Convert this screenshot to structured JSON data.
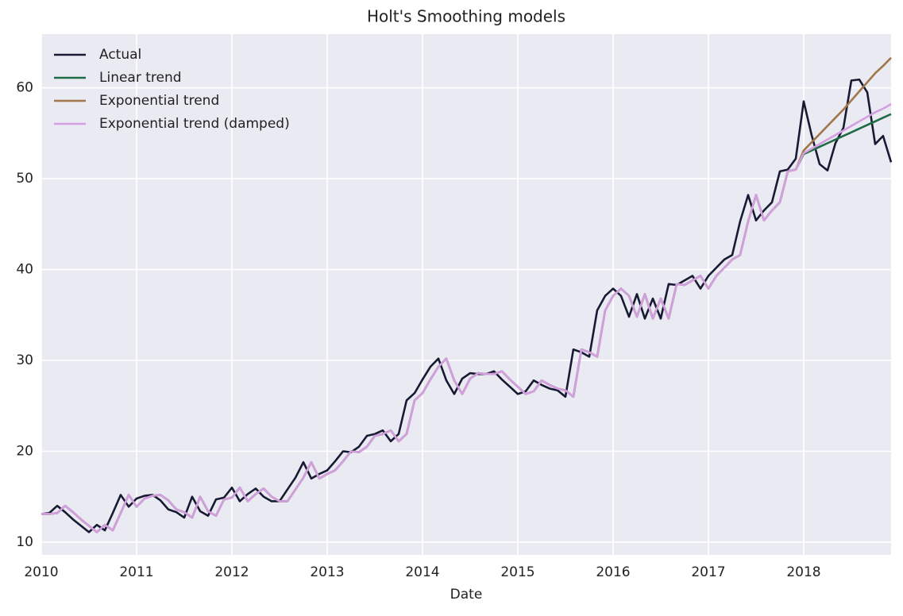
{
  "chart_data": {
    "type": "line",
    "title": "Holt's Smoothing models",
    "x_label": "Date",
    "x": [
      2010,
      2010.083,
      2010.167,
      2010.25,
      2010.333,
      2010.417,
      2010.5,
      2010.583,
      2010.667,
      2010.75,
      2010.833,
      2010.917,
      2011,
      2011.083,
      2011.167,
      2011.25,
      2011.333,
      2011.417,
      2011.5,
      2011.583,
      2011.667,
      2011.75,
      2011.833,
      2011.917,
      2012,
      2012.083,
      2012.167,
      2012.25,
      2012.333,
      2012.417,
      2012.5,
      2012.583,
      2012.667,
      2012.75,
      2012.833,
      2012.917,
      2013,
      2013.083,
      2013.167,
      2013.25,
      2013.333,
      2013.417,
      2013.5,
      2013.583,
      2013.667,
      2013.75,
      2013.833,
      2013.917,
      2014,
      2014.083,
      2014.167,
      2014.25,
      2014.333,
      2014.417,
      2014.5,
      2014.583,
      2014.667,
      2014.75,
      2014.833,
      2014.917,
      2015,
      2015.083,
      2015.167,
      2015.25,
      2015.333,
      2015.417,
      2015.5,
      2015.583,
      2015.667,
      2015.75,
      2015.833,
      2015.917,
      2016,
      2016.083,
      2016.167,
      2016.25,
      2016.333,
      2016.417,
      2016.5,
      2016.583,
      2016.667,
      2016.75,
      2016.833,
      2016.917,
      2017,
      2017.083,
      2017.167,
      2017.25,
      2017.333,
      2017.417,
      2017.5,
      2017.583,
      2017.667,
      2017.75,
      2017.833,
      2017.917,
      2018,
      2018.083,
      2018.167,
      2018.25,
      2018.333,
      2018.417,
      2018.5,
      2018.583,
      2018.667,
      2018.75,
      2018.833,
      2018.917
    ],
    "series": [
      {
        "name": "Actual",
        "color": "#171a33",
        "values": [
          13.1,
          13.2,
          14.0,
          13.3,
          12.5,
          11.8,
          11.1,
          11.9,
          11.3,
          13.2,
          15.2,
          13.9,
          14.8,
          15.1,
          15.2,
          14.6,
          13.6,
          13.3,
          12.7,
          15.0,
          13.4,
          12.9,
          14.7,
          14.9,
          16.0,
          14.5,
          15.3,
          15.9,
          15.0,
          14.5,
          14.5,
          15.8,
          17.1,
          18.8,
          17.0,
          17.5,
          17.9,
          18.9,
          20.0,
          19.9,
          20.5,
          21.7,
          21.9,
          22.3,
          21.1,
          21.9,
          25.6,
          26.4,
          27.9,
          29.3,
          30.2,
          27.8,
          26.3,
          28.0,
          28.6,
          28.5,
          28.5,
          28.8,
          27.9,
          27.1,
          26.3,
          26.6,
          27.8,
          27.3,
          26.9,
          26.7,
          26.0,
          31.2,
          30.9,
          30.4,
          35.5,
          37.1,
          37.9,
          37.1,
          34.8,
          37.3,
          34.6,
          36.8,
          34.6,
          38.4,
          38.3,
          38.8,
          39.3,
          37.9,
          39.3,
          40.2,
          41.1,
          41.6,
          45.3,
          48.2,
          45.4,
          46.5,
          47.4,
          50.8,
          51.0,
          52.2,
          58.5,
          54.8,
          51.6,
          50.9,
          53.9,
          55.6,
          60.8,
          60.9,
          59.5,
          53.8,
          54.7,
          51.8
        ]
      },
      {
        "name": "Linear trend",
        "color": "#1e6b45",
        "values": [
          13.1,
          13.1,
          13.2,
          14.0,
          13.3,
          12.5,
          11.8,
          11.1,
          11.9,
          11.3,
          13.2,
          15.2,
          13.9,
          14.8,
          15.1,
          15.2,
          14.6,
          13.6,
          13.3,
          12.7,
          15.0,
          13.4,
          12.9,
          14.7,
          14.9,
          16.0,
          14.5,
          15.3,
          15.9,
          15.0,
          14.5,
          14.5,
          15.8,
          17.1,
          18.8,
          17.0,
          17.5,
          17.9,
          18.9,
          20.0,
          19.9,
          20.5,
          21.7,
          21.9,
          22.3,
          21.1,
          21.9,
          25.6,
          26.4,
          27.9,
          29.3,
          30.2,
          27.8,
          26.3,
          28.0,
          28.6,
          28.5,
          28.5,
          28.8,
          27.9,
          27.1,
          26.3,
          26.6,
          27.8,
          27.3,
          26.9,
          26.7,
          26.0,
          31.2,
          30.9,
          30.4,
          35.5,
          37.1,
          37.9,
          37.1,
          34.8,
          37.3,
          34.6,
          36.8,
          34.6,
          38.4,
          38.3,
          38.8,
          39.3,
          37.9,
          39.3,
          40.2,
          41.1,
          41.6,
          45.3,
          48.2,
          45.4,
          46.5,
          47.4,
          50.8,
          51.0,
          52.7,
          53.1,
          53.5,
          53.9,
          54.3,
          54.7,
          55.1,
          55.5,
          55.9,
          56.3,
          56.7,
          57.1
        ]
      },
      {
        "name": "Exponential trend",
        "color": "#a0764a",
        "values": [
          13.1,
          13.1,
          13.2,
          14.0,
          13.3,
          12.5,
          11.8,
          11.1,
          11.9,
          11.3,
          13.2,
          15.2,
          13.9,
          14.8,
          15.1,
          15.2,
          14.6,
          13.6,
          13.3,
          12.7,
          15.0,
          13.4,
          12.9,
          14.7,
          14.9,
          16.0,
          14.5,
          15.3,
          15.9,
          15.0,
          14.5,
          14.5,
          15.8,
          17.1,
          18.8,
          17.0,
          17.5,
          17.9,
          18.9,
          20.0,
          19.9,
          20.5,
          21.7,
          21.9,
          22.3,
          21.1,
          21.9,
          25.6,
          26.4,
          27.9,
          29.3,
          30.2,
          27.8,
          26.3,
          28.0,
          28.6,
          28.5,
          28.5,
          28.8,
          27.9,
          27.1,
          26.3,
          26.6,
          27.8,
          27.3,
          26.9,
          26.7,
          26.0,
          31.2,
          30.9,
          30.4,
          35.5,
          37.1,
          37.9,
          37.1,
          34.8,
          37.3,
          34.6,
          36.8,
          34.6,
          38.4,
          38.3,
          38.8,
          39.3,
          37.9,
          39.3,
          40.2,
          41.1,
          41.6,
          45.3,
          48.2,
          45.4,
          46.5,
          47.4,
          50.8,
          51.0,
          53.1,
          54.0,
          54.9,
          55.8,
          56.7,
          57.6,
          58.6,
          59.6,
          60.6,
          61.6,
          62.4,
          63.3
        ]
      },
      {
        "name": "Exponential trend (damped)",
        "color": "#d39fe0",
        "values": [
          13.1,
          13.1,
          13.2,
          14.0,
          13.3,
          12.5,
          11.8,
          11.1,
          11.9,
          11.3,
          13.2,
          15.2,
          13.9,
          14.8,
          15.1,
          15.2,
          14.6,
          13.6,
          13.3,
          12.7,
          15.0,
          13.4,
          12.9,
          14.7,
          14.9,
          16.0,
          14.5,
          15.3,
          15.9,
          15.0,
          14.5,
          14.5,
          15.8,
          17.1,
          18.8,
          17.0,
          17.5,
          17.9,
          18.9,
          20.0,
          19.9,
          20.5,
          21.7,
          21.9,
          22.3,
          21.1,
          21.9,
          25.6,
          26.4,
          27.9,
          29.3,
          30.2,
          27.8,
          26.3,
          28.0,
          28.6,
          28.5,
          28.5,
          28.8,
          27.9,
          27.1,
          26.3,
          26.6,
          27.8,
          27.3,
          26.9,
          26.7,
          26.0,
          31.2,
          30.9,
          30.4,
          35.5,
          37.1,
          37.9,
          37.1,
          34.8,
          37.3,
          34.6,
          36.8,
          34.6,
          38.4,
          38.3,
          38.8,
          39.3,
          37.9,
          39.3,
          40.2,
          41.1,
          41.6,
          45.3,
          48.2,
          45.4,
          46.5,
          47.4,
          50.8,
          51.0,
          52.8,
          53.3,
          53.8,
          54.3,
          54.8,
          55.3,
          55.8,
          56.3,
          56.8,
          57.3,
          57.7,
          58.2
        ]
      }
    ],
    "xlim": [
      2010,
      2018.917
    ],
    "xticks": [
      2010,
      2011,
      2012,
      2013,
      2014,
      2015,
      2016,
      2017,
      2018
    ],
    "ylim": [
      8.6,
      65.9
    ],
    "yticks": [
      10,
      20,
      30,
      40,
      50,
      60
    ],
    "grid": true,
    "legend": "upper left"
  }
}
